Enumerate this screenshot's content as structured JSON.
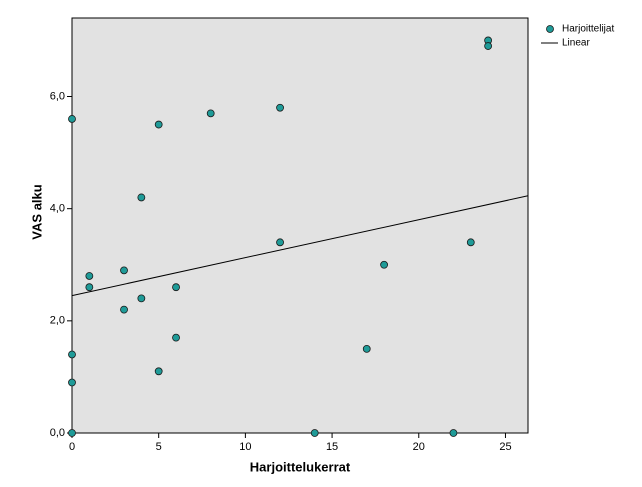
{
  "chart_data": {
    "type": "scatter",
    "x_label": "Harjoittelukerrat",
    "y_label": "VAS alku",
    "xlim": [
      0,
      26.3
    ],
    "ylim": [
      0,
      7.4
    ],
    "xticks": [
      0,
      5,
      10,
      15,
      20,
      25
    ],
    "yticks": [
      {
        "value": 0,
        "label": "0,0"
      },
      {
        "value": 2,
        "label": "2,0"
      },
      {
        "value": 4,
        "label": "4,0"
      },
      {
        "value": 6,
        "label": "6,0"
      }
    ],
    "background": "#e2e2e2",
    "series": [
      {
        "name": "Harjoittelijat",
        "type": "scatter",
        "color": "#1f9b98",
        "x": [
          0,
          0,
          0,
          0,
          1,
          1,
          3,
          3,
          4,
          4,
          5,
          5,
          6,
          6,
          8,
          12,
          12,
          14,
          17,
          18,
          22,
          23,
          24,
          24
        ],
        "values": [
          5.6,
          1.4,
          0.9,
          0,
          2.8,
          2.6,
          2.9,
          2.2,
          4.2,
          2.4,
          5.5,
          1.1,
          2.6,
          1.7,
          5.7,
          5.8,
          3.4,
          0,
          1.5,
          3.0,
          0,
          3.4,
          7.0,
          6.9
        ]
      },
      {
        "name": "Linear",
        "type": "line",
        "color": "#000000",
        "x": [
          0,
          26.3
        ],
        "values": [
          2.45,
          4.23
        ]
      }
    ]
  }
}
